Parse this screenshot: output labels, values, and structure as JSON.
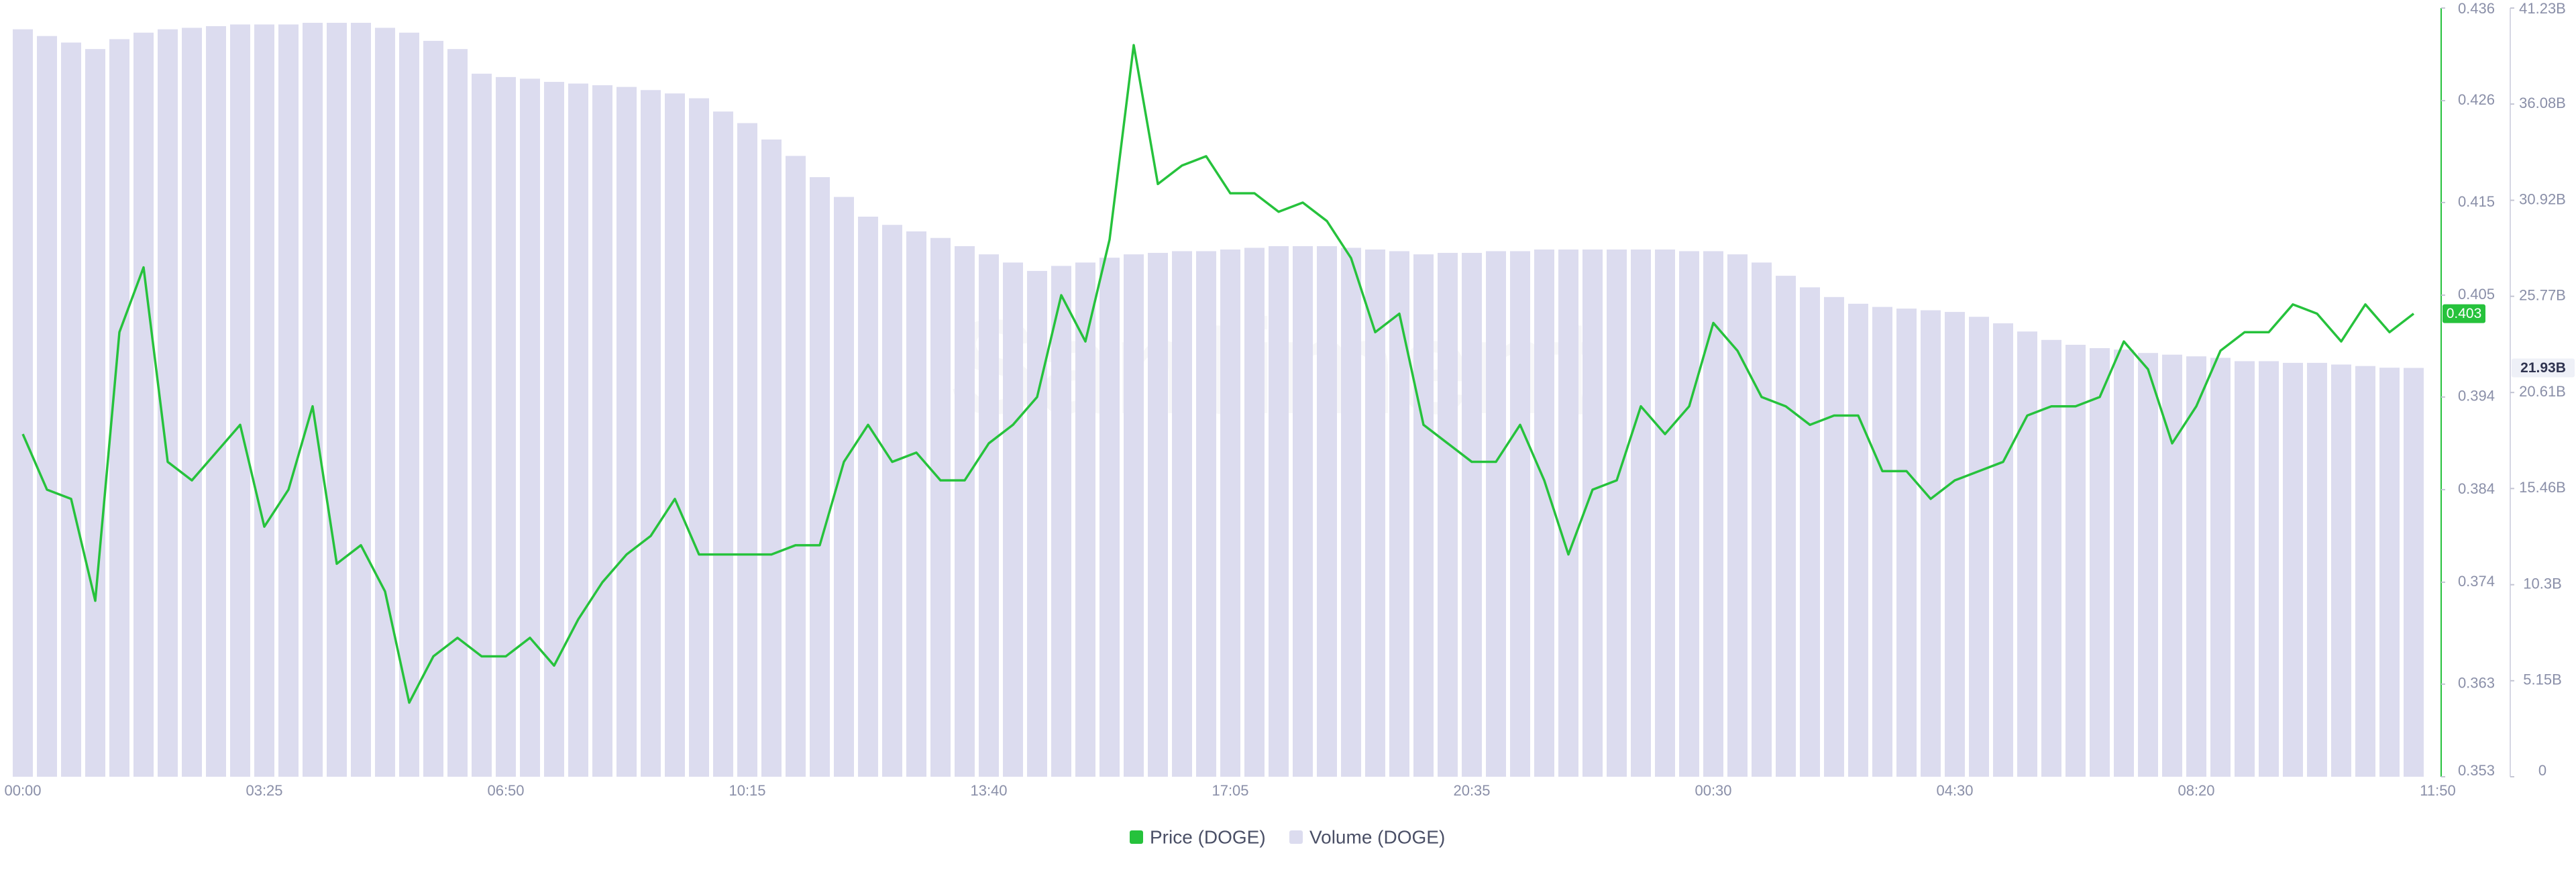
{
  "chart_data": {
    "type": "combo",
    "watermark": "Santiment",
    "categories": [
      "00:00",
      null,
      null,
      null,
      null,
      null,
      null,
      null,
      null,
      null,
      "03:25",
      null,
      null,
      null,
      null,
      null,
      null,
      null,
      null,
      null,
      "06:50",
      null,
      null,
      null,
      null,
      null,
      null,
      null,
      null,
      null,
      "10:15",
      null,
      null,
      null,
      null,
      null,
      null,
      null,
      null,
      null,
      "13:40",
      null,
      null,
      null,
      null,
      null,
      null,
      null,
      null,
      null,
      "17:05",
      null,
      null,
      null,
      null,
      null,
      null,
      null,
      null,
      null,
      "20:35",
      null,
      null,
      null,
      null,
      null,
      null,
      null,
      null,
      null,
      "00:30",
      null,
      null,
      null,
      null,
      null,
      null,
      null,
      null,
      null,
      "04:30",
      null,
      null,
      null,
      null,
      null,
      null,
      null,
      null,
      null,
      "08:20",
      null,
      null,
      null,
      null,
      null,
      null,
      null,
      null,
      null,
      "11:50"
    ],
    "series": [
      {
        "name": "Volume (DOGE)",
        "type": "bar",
        "axis": "y2",
        "color": "#dcdcef",
        "values": [
          40.09,
          39.73,
          39.38,
          39.03,
          39.56,
          39.91,
          40.09,
          40.17,
          40.26,
          40.35,
          40.35,
          40.35,
          40.44,
          40.44,
          40.44,
          40.17,
          39.91,
          39.47,
          39.03,
          37.71,
          37.53,
          37.44,
          37.27,
          37.18,
          37.09,
          37.0,
          36.83,
          36.65,
          36.39,
          35.68,
          35.06,
          34.18,
          33.3,
          32.16,
          31.1,
          30.04,
          29.6,
          29.25,
          28.9,
          28.46,
          28.02,
          27.58,
          27.13,
          27.4,
          27.58,
          27.84,
          28.02,
          28.1,
          28.19,
          28.19,
          28.28,
          28.37,
          28.46,
          28.46,
          28.46,
          28.37,
          28.28,
          28.19,
          28.02,
          28.1,
          28.1,
          28.19,
          28.19,
          28.28,
          28.28,
          28.28,
          28.28,
          28.28,
          28.28,
          28.19,
          28.19,
          28.02,
          27.58,
          26.87,
          26.25,
          25.73,
          25.37,
          25.2,
          25.11,
          25.02,
          24.93,
          24.67,
          24.32,
          23.88,
          23.43,
          23.17,
          22.99,
          22.91,
          22.73,
          22.64,
          22.55,
          22.47,
          22.29,
          22.29,
          22.2,
          22.2,
          22.11,
          22.03,
          21.94,
          21.93,
          null
        ]
      },
      {
        "name": "Price (DOGE)",
        "type": "line",
        "color": "#26c23c",
        "values": [
          0.39,
          0.384,
          0.383,
          0.372,
          0.401,
          0.408,
          0.387,
          0.385,
          0.388,
          0.391,
          0.38,
          0.384,
          0.393,
          0.376,
          0.378,
          0.373,
          0.361,
          0.366,
          0.368,
          0.366,
          0.366,
          0.368,
          0.365,
          0.37,
          0.374,
          0.377,
          0.379,
          0.383,
          0.377,
          0.377,
          0.377,
          0.377,
          0.378,
          0.378,
          0.387,
          0.391,
          0.387,
          0.388,
          0.385,
          0.385,
          0.389,
          0.391,
          0.394,
          0.405,
          0.4,
          0.411,
          0.432,
          0.417,
          0.419,
          0.42,
          0.416,
          0.416,
          0.414,
          0.415,
          0.413,
          0.409,
          0.401,
          0.403,
          0.391,
          0.389,
          0.387,
          0.387,
          0.391,
          0.385,
          0.377,
          0.384,
          0.385,
          0.393,
          0.39,
          0.393,
          0.402,
          0.399,
          0.394,
          0.393,
          0.391,
          0.392,
          0.392,
          0.386,
          0.386,
          0.383,
          0.385,
          0.386,
          0.387,
          0.392,
          0.393,
          0.393,
          0.394,
          0.4,
          0.397,
          0.389,
          0.393,
          0.399,
          0.401,
          0.401,
          0.404,
          0.403,
          0.4,
          0.404,
          0.401,
          0.403,
          null
        ]
      }
    ],
    "ylim": [
      0.353,
      0.436
    ],
    "yticks": [
      0.353,
      0.363,
      0.374,
      0.384,
      0.394,
      0.405,
      0.415,
      0.426,
      0.436
    ],
    "y2lim": [
      0,
      41.23
    ],
    "y2ticks": [
      0,
      {
        "value": 5.15,
        "label": "5.15B"
      },
      {
        "value": 10.3,
        "label": "10.3B"
      },
      {
        "value": 15.46,
        "label": "15.46B"
      },
      {
        "value": 20.61,
        "label": "20.61B"
      },
      {
        "value": 25.77,
        "label": "25.77B"
      },
      {
        "value": 30.92,
        "label": "30.92B"
      },
      {
        "value": 36.08,
        "label": "36.08B"
      },
      {
        "value": 41.23,
        "label": "41.23B"
      }
    ],
    "price_badge": 0.403,
    "volume_badge": {
      "value": 21.93,
      "label": "21.93B"
    }
  }
}
